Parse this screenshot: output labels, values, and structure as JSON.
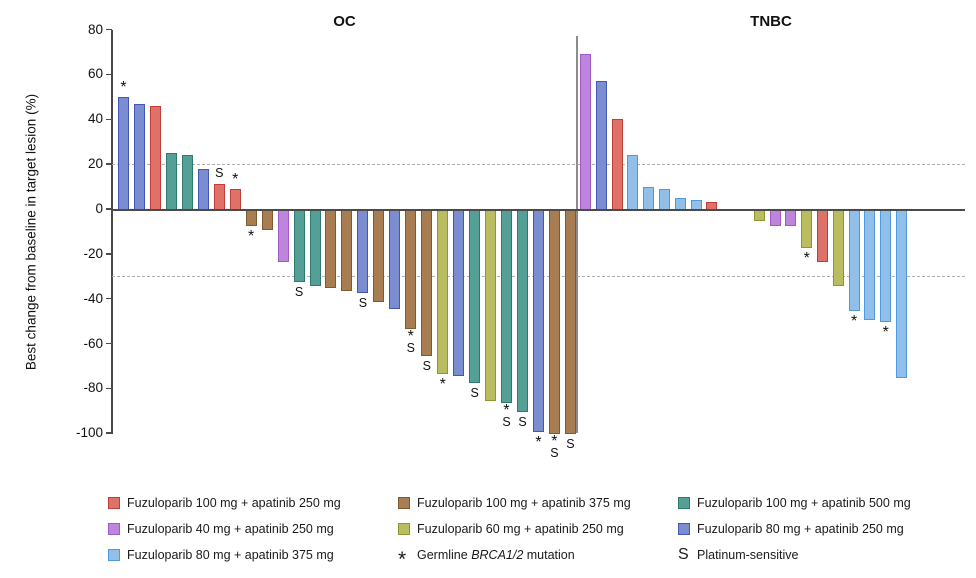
{
  "y_axis": {
    "label": "Best change from baseline in target lesion (%)",
    "ticks": [
      80,
      60,
      40,
      20,
      0,
      -20,
      -40,
      -60,
      -80,
      -100
    ]
  },
  "chart_data": {
    "type": "bar",
    "ylabel": "Best change from baseline in target lesion (%)",
    "ylim": [
      -100,
      80
    ],
    "reference_lines": [
      20,
      -30
    ],
    "grid": "dashed reference lines at +20 and -30 only",
    "colors": {
      "red": {
        "fill": "#DE7168",
        "stroke": "#C23C38"
      },
      "blue": {
        "fill": "#7A8DD1",
        "stroke": "#4355B5"
      },
      "teal": {
        "fill": "#54A096",
        "stroke": "#2E7A6C"
      },
      "brown": {
        "fill": "#A87D52",
        "stroke": "#7D5B31"
      },
      "purple": {
        "fill": "#BE85DC",
        "stroke": "#A05BC8"
      },
      "olive": {
        "fill": "#B9BD5F",
        "stroke": "#8F9434"
      },
      "ltblue": {
        "fill": "#91BFE9",
        "stroke": "#4C9BE2"
      }
    },
    "symbol_meanings": {
      "*": "Germline BRCA1/2 mutation",
      "S": "Platinum-sensitive"
    },
    "panels": [
      {
        "title": "OC",
        "bars": [
          {
            "v": 50,
            "c": "blue",
            "sym": "*"
          },
          {
            "v": 47,
            "c": "blue"
          },
          {
            "v": 46,
            "c": "red"
          },
          {
            "v": 25,
            "c": "teal"
          },
          {
            "v": 24,
            "c": "teal"
          },
          {
            "v": 18,
            "c": "blue"
          },
          {
            "v": 11,
            "c": "red",
            "sym": "S"
          },
          {
            "v": 9,
            "c": "red",
            "sym": "*"
          },
          {
            "v": -7,
            "c": "brown",
            "sym": "*"
          },
          {
            "v": -9,
            "c": "brown"
          },
          {
            "v": -23,
            "c": "purple"
          },
          {
            "v": -32,
            "c": "teal",
            "sym": "S"
          },
          {
            "v": -34,
            "c": "teal"
          },
          {
            "v": -35,
            "c": "brown"
          },
          {
            "v": -36,
            "c": "brown"
          },
          {
            "v": -37,
            "c": "blue",
            "sym": "S"
          },
          {
            "v": -41,
            "c": "brown"
          },
          {
            "v": -44,
            "c": "blue"
          },
          {
            "v": -53,
            "c": "brown",
            "sym": "*S"
          },
          {
            "v": -65,
            "c": "brown",
            "sym": "S"
          },
          {
            "v": -73,
            "c": "olive",
            "sym": "*"
          },
          {
            "v": -74,
            "c": "blue"
          },
          {
            "v": -77,
            "c": "teal",
            "sym": "S"
          },
          {
            "v": -85,
            "c": "olive"
          },
          {
            "v": -86,
            "c": "teal",
            "sym": "*S"
          },
          {
            "v": -90,
            "c": "teal",
            "sym": "S"
          },
          {
            "v": -99,
            "c": "blue",
            "sym": "*"
          },
          {
            "v": -100,
            "c": "brown",
            "sym": "*S"
          },
          {
            "v": -100,
            "c": "brown",
            "sym": "S"
          }
        ]
      },
      {
        "title": "TNBC",
        "bars": [
          {
            "v": 69,
            "c": "purple"
          },
          {
            "v": 57,
            "c": "blue"
          },
          {
            "v": 40,
            "c": "red"
          },
          {
            "v": 24,
            "c": "ltblue"
          },
          {
            "v": 10,
            "c": "ltblue"
          },
          {
            "v": 9,
            "c": "ltblue"
          },
          {
            "v": 5,
            "c": "ltblue"
          },
          {
            "v": 4,
            "c": "ltblue"
          },
          {
            "v": 3,
            "c": "red"
          },
          {
            "spacer": true
          },
          {
            "spacer": true
          },
          {
            "v": -5,
            "c": "olive"
          },
          {
            "v": -7,
            "c": "purple"
          },
          {
            "v": -7,
            "c": "purple"
          },
          {
            "v": -17,
            "c": "olive",
            "sym": "*"
          },
          {
            "v": -23,
            "c": "red"
          },
          {
            "v": -34,
            "c": "olive"
          },
          {
            "v": -45,
            "c": "ltblue",
            "sym": "*"
          },
          {
            "v": -49,
            "c": "ltblue"
          },
          {
            "v": -50,
            "c": "ltblue",
            "sym": "*"
          },
          {
            "v": -75,
            "c": "ltblue"
          }
        ]
      }
    ]
  },
  "legend": {
    "items": [
      {
        "type": "swatch",
        "color": "red",
        "label": "Fuzuloparib 100 mg + apatinib 250 mg"
      },
      {
        "type": "swatch",
        "color": "brown",
        "label": "Fuzuloparib 100 mg + apatinib 375 mg"
      },
      {
        "type": "swatch",
        "color": "teal",
        "label": "Fuzuloparib 100 mg + apatinib 500 mg"
      },
      {
        "type": "swatch",
        "color": "purple",
        "label": "Fuzuloparib 40 mg + apatinib 250 mg"
      },
      {
        "type": "swatch",
        "color": "olive",
        "label": "Fuzuloparib 60 mg + apatinib 250 mg"
      },
      {
        "type": "swatch",
        "color": "blue",
        "label": "Fuzuloparib 80 mg + apatinib 250 mg"
      },
      {
        "type": "swatch",
        "color": "ltblue",
        "label": "Fuzuloparib 80 mg + apatinib 375 mg"
      },
      {
        "type": "symbol",
        "symbol": "*",
        "pre": "Germline ",
        "italic": "BRCA1/2",
        "post": " mutation"
      },
      {
        "type": "symbol",
        "symbol": "S",
        "label": "Platinum-sensitive"
      }
    ]
  }
}
